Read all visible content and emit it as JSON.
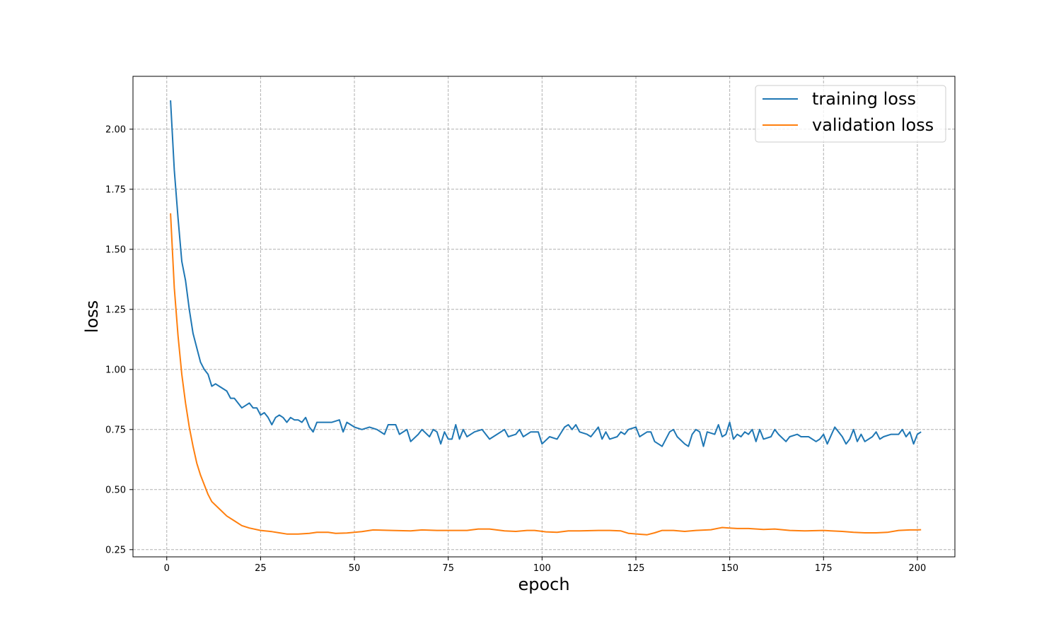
{
  "chart_data": {
    "type": "line",
    "title": "",
    "xlabel": "epoch",
    "ylabel": "loss",
    "xlim": [
      -9,
      210
    ],
    "ylim": [
      0.22,
      2.22
    ],
    "xticks": [
      0,
      25,
      50,
      75,
      100,
      125,
      150,
      175,
      200
    ],
    "yticks": [
      0.25,
      0.5,
      0.75,
      1.0,
      1.25,
      1.5,
      1.75,
      2.0
    ],
    "xtick_labels": [
      "0",
      "25",
      "50",
      "75",
      "100",
      "125",
      "150",
      "175",
      "200"
    ],
    "ytick_labels": [
      "0.25",
      "0.50",
      "0.75",
      "1.00",
      "1.25",
      "1.50",
      "1.75",
      "2.00"
    ],
    "grid": true,
    "legend_position": "top-right",
    "x": [
      1,
      200
    ],
    "series": [
      {
        "name": "training loss",
        "color": "#1f77b4",
        "keypoints": [
          [
            1,
            2.12
          ],
          [
            2,
            1.83
          ],
          [
            3,
            1.63
          ],
          [
            4,
            1.45
          ],
          [
            5,
            1.37
          ],
          [
            6,
            1.25
          ],
          [
            7,
            1.15
          ],
          [
            8,
            1.09
          ],
          [
            9,
            1.03
          ],
          [
            10,
            1.0
          ],
          [
            11,
            0.98
          ],
          [
            12,
            0.93
          ],
          [
            13,
            0.94
          ],
          [
            14,
            0.93
          ],
          [
            15,
            0.92
          ],
          [
            16,
            0.91
          ],
          [
            17,
            0.88
          ],
          [
            18,
            0.88
          ],
          [
            19,
            0.86
          ],
          [
            20,
            0.84
          ],
          [
            21,
            0.85
          ],
          [
            22,
            0.86
          ],
          [
            23,
            0.84
          ],
          [
            24,
            0.84
          ],
          [
            25,
            0.81
          ],
          [
            26,
            0.82
          ],
          [
            27,
            0.8
          ],
          [
            28,
            0.77
          ],
          [
            29,
            0.8
          ],
          [
            30,
            0.81
          ],
          [
            31,
            0.8
          ],
          [
            32,
            0.78
          ],
          [
            33,
            0.8
          ],
          [
            34,
            0.79
          ],
          [
            35,
            0.79
          ],
          [
            36,
            0.78
          ],
          [
            37,
            0.8
          ],
          [
            38,
            0.76
          ],
          [
            39,
            0.74
          ],
          [
            40,
            0.78
          ],
          [
            42,
            0.78
          ],
          [
            44,
            0.78
          ],
          [
            46,
            0.79
          ],
          [
            47,
            0.74
          ],
          [
            48,
            0.78
          ],
          [
            50,
            0.76
          ],
          [
            52,
            0.75
          ],
          [
            54,
            0.76
          ],
          [
            56,
            0.75
          ],
          [
            58,
            0.73
          ],
          [
            59,
            0.77
          ],
          [
            61,
            0.77
          ],
          [
            62,
            0.73
          ],
          [
            64,
            0.75
          ],
          [
            65,
            0.7
          ],
          [
            67,
            0.73
          ],
          [
            68,
            0.75
          ],
          [
            70,
            0.72
          ],
          [
            71,
            0.75
          ],
          [
            72,
            0.74
          ],
          [
            73,
            0.69
          ],
          [
            74,
            0.74
          ],
          [
            75,
            0.71
          ],
          [
            76,
            0.71
          ],
          [
            77,
            0.77
          ],
          [
            78,
            0.71
          ],
          [
            79,
            0.75
          ],
          [
            80,
            0.72
          ],
          [
            82,
            0.74
          ],
          [
            84,
            0.75
          ],
          [
            86,
            0.71
          ],
          [
            88,
            0.73
          ],
          [
            90,
            0.75
          ],
          [
            91,
            0.72
          ],
          [
            93,
            0.73
          ],
          [
            94,
            0.75
          ],
          [
            95,
            0.72
          ],
          [
            97,
            0.74
          ],
          [
            99,
            0.74
          ],
          [
            100,
            0.69
          ],
          [
            102,
            0.72
          ],
          [
            104,
            0.71
          ],
          [
            106,
            0.76
          ],
          [
            107,
            0.77
          ],
          [
            108,
            0.75
          ],
          [
            109,
            0.77
          ],
          [
            110,
            0.74
          ],
          [
            112,
            0.73
          ],
          [
            113,
            0.72
          ],
          [
            115,
            0.76
          ],
          [
            116,
            0.71
          ],
          [
            117,
            0.74
          ],
          [
            118,
            0.71
          ],
          [
            120,
            0.72
          ],
          [
            121,
            0.74
          ],
          [
            122,
            0.73
          ],
          [
            123,
            0.75
          ],
          [
            125,
            0.76
          ],
          [
            126,
            0.72
          ],
          [
            128,
            0.74
          ],
          [
            129,
            0.74
          ],
          [
            130,
            0.7
          ],
          [
            131,
            0.69
          ],
          [
            132,
            0.68
          ],
          [
            134,
            0.74
          ],
          [
            135,
            0.75
          ],
          [
            136,
            0.72
          ],
          [
            138,
            0.69
          ],
          [
            139,
            0.68
          ],
          [
            140,
            0.73
          ],
          [
            141,
            0.75
          ],
          [
            142,
            0.74
          ],
          [
            143,
            0.68
          ],
          [
            144,
            0.74
          ],
          [
            146,
            0.73
          ],
          [
            147,
            0.77
          ],
          [
            148,
            0.72
          ],
          [
            149,
            0.73
          ],
          [
            150,
            0.78
          ],
          [
            151,
            0.71
          ],
          [
            152,
            0.73
          ],
          [
            153,
            0.72
          ],
          [
            154,
            0.74
          ],
          [
            155,
            0.73
          ],
          [
            156,
            0.75
          ],
          [
            157,
            0.7
          ],
          [
            158,
            0.75
          ],
          [
            159,
            0.71
          ],
          [
            161,
            0.72
          ],
          [
            162,
            0.75
          ],
          [
            163,
            0.73
          ],
          [
            165,
            0.7
          ],
          [
            166,
            0.72
          ],
          [
            168,
            0.73
          ],
          [
            169,
            0.72
          ],
          [
            171,
            0.72
          ],
          [
            173,
            0.7
          ],
          [
            174,
            0.71
          ],
          [
            175,
            0.73
          ],
          [
            176,
            0.69
          ],
          [
            178,
            0.76
          ],
          [
            180,
            0.72
          ],
          [
            181,
            0.69
          ],
          [
            182,
            0.71
          ],
          [
            183,
            0.75
          ],
          [
            184,
            0.7
          ],
          [
            185,
            0.73
          ],
          [
            186,
            0.7
          ],
          [
            188,
            0.72
          ],
          [
            189,
            0.74
          ],
          [
            190,
            0.71
          ],
          [
            191,
            0.72
          ],
          [
            193,
            0.73
          ],
          [
            195,
            0.73
          ],
          [
            196,
            0.75
          ],
          [
            197,
            0.72
          ],
          [
            198,
            0.74
          ],
          [
            199,
            0.69
          ],
          [
            200,
            0.73
          ],
          [
            201,
            0.74
          ]
        ]
      },
      {
        "name": "validation loss",
        "color": "#ff7f0e",
        "keypoints": [
          [
            1,
            1.65
          ],
          [
            2,
            1.34
          ],
          [
            3,
            1.14
          ],
          [
            4,
            0.98
          ],
          [
            5,
            0.86
          ],
          [
            6,
            0.76
          ],
          [
            7,
            0.68
          ],
          [
            8,
            0.61
          ],
          [
            9,
            0.56
          ],
          [
            10,
            0.52
          ],
          [
            11,
            0.48
          ],
          [
            12,
            0.45
          ],
          [
            14,
            0.42
          ],
          [
            16,
            0.39
          ],
          [
            18,
            0.37
          ],
          [
            20,
            0.35
          ],
          [
            22,
            0.34
          ],
          [
            25,
            0.33
          ],
          [
            28,
            0.325
          ],
          [
            30,
            0.32
          ],
          [
            32,
            0.315
          ],
          [
            35,
            0.315
          ],
          [
            38,
            0.318
          ],
          [
            40,
            0.322
          ],
          [
            43,
            0.322
          ],
          [
            45,
            0.318
          ],
          [
            48,
            0.319
          ],
          [
            52,
            0.325
          ],
          [
            55,
            0.332
          ],
          [
            60,
            0.33
          ],
          [
            65,
            0.328
          ],
          [
            68,
            0.332
          ],
          [
            72,
            0.33
          ],
          [
            80,
            0.33
          ],
          [
            83,
            0.336
          ],
          [
            86,
            0.336
          ],
          [
            90,
            0.328
          ],
          [
            93,
            0.326
          ],
          [
            96,
            0.33
          ],
          [
            98,
            0.33
          ],
          [
            101,
            0.324
          ],
          [
            104,
            0.322
          ],
          [
            107,
            0.328
          ],
          [
            110,
            0.328
          ],
          [
            115,
            0.33
          ],
          [
            118,
            0.33
          ],
          [
            121,
            0.328
          ],
          [
            123,
            0.318
          ],
          [
            126,
            0.314
          ],
          [
            128,
            0.312
          ],
          [
            130,
            0.32
          ],
          [
            132,
            0.33
          ],
          [
            135,
            0.33
          ],
          [
            138,
            0.326
          ],
          [
            141,
            0.33
          ],
          [
            145,
            0.333
          ],
          [
            148,
            0.342
          ],
          [
            150,
            0.34
          ],
          [
            152,
            0.338
          ],
          [
            155,
            0.338
          ],
          [
            159,
            0.334
          ],
          [
            162,
            0.336
          ],
          [
            166,
            0.33
          ],
          [
            170,
            0.328
          ],
          [
            175,
            0.33
          ],
          [
            177,
            0.328
          ],
          [
            180,
            0.326
          ],
          [
            183,
            0.322
          ],
          [
            186,
            0.32
          ],
          [
            189,
            0.32
          ],
          [
            192,
            0.322
          ],
          [
            195,
            0.33
          ],
          [
            198,
            0.332
          ],
          [
            200,
            0.332
          ],
          [
            201,
            0.333
          ]
        ]
      }
    ]
  }
}
